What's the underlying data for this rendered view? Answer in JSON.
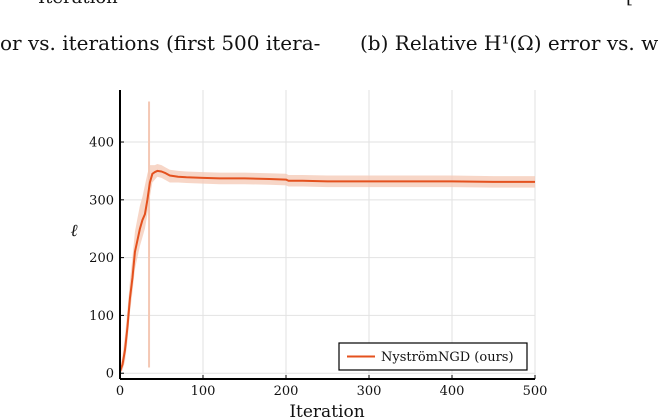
{
  "header": {
    "cropped_top_label": "Iteration",
    "cropped_top_bracket": "[",
    "left_caption": "or vs. iterations (first 500 itera-",
    "right_caption": "(b) Relative H¹(Ω) error vs. w"
  },
  "colors": {
    "series": "#e4511e",
    "band": "#f4c8b4",
    "grid": "#e2e2e2",
    "axis": "#000000"
  },
  "chart_data": {
    "type": "line",
    "title": "",
    "xlabel": "Iteration",
    "ylabel": "ℓ",
    "xlim": [
      0,
      500
    ],
    "ylim": [
      -10,
      490
    ],
    "xticks": [
      0,
      100,
      200,
      300,
      400,
      500
    ],
    "yticks": [
      0,
      100,
      200,
      300,
      400
    ],
    "grid": true,
    "legend_position": "bottom-right",
    "series": [
      {
        "name": "NyströmNGD (ours)",
        "x": [
          0,
          3,
          6,
          9,
          12,
          15,
          18,
          21,
          24,
          27,
          30,
          33,
          36,
          39,
          42,
          45,
          50,
          55,
          60,
          70,
          80,
          100,
          120,
          150,
          180,
          200,
          203,
          220,
          250,
          300,
          350,
          400,
          450,
          500
        ],
        "y": [
          3,
          15,
          40,
          80,
          130,
          165,
          210,
          230,
          250,
          265,
          275,
          300,
          330,
          345,
          348,
          350,
          349,
          346,
          342,
          340,
          339,
          338,
          337,
          337,
          336,
          335,
          333,
          333,
          332,
          332,
          332,
          332,
          331,
          331
        ],
        "band_lower": [
          0,
          5,
          20,
          55,
          105,
          140,
          180,
          200,
          220,
          235,
          250,
          275,
          305,
          330,
          335,
          340,
          338,
          334,
          330,
          330,
          329,
          328,
          327,
          327,
          326,
          325,
          323,
          323,
          322,
          322,
          322,
          322,
          321,
          321
        ],
        "band_upper": [
          8,
          30,
          65,
          110,
          160,
          200,
          245,
          268,
          290,
          305,
          325,
          345,
          360,
          360,
          360,
          362,
          360,
          356,
          352,
          350,
          349,
          348,
          347,
          347,
          346,
          345,
          343,
          343,
          342,
          342,
          342,
          342,
          341,
          341
        ]
      }
    ]
  }
}
